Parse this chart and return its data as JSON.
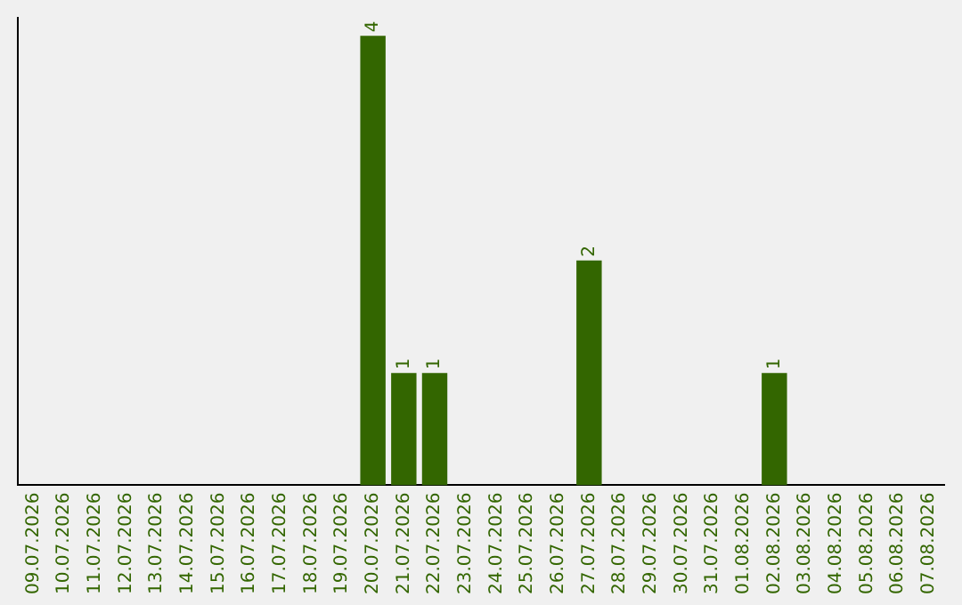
{
  "chart_data": {
    "type": "bar",
    "categories": [
      "09.07.2026",
      "10.07.2026",
      "11.07.2026",
      "12.07.2026",
      "13.07.2026",
      "14.07.2026",
      "15.07.2026",
      "16.07.2026",
      "17.07.2026",
      "18.07.2026",
      "19.07.2026",
      "20.07.2026",
      "21.07.2026",
      "22.07.2026",
      "23.07.2026",
      "24.07.2026",
      "25.07.2026",
      "26.07.2026",
      "27.07.2026",
      "28.07.2026",
      "29.07.2026",
      "30.07.2026",
      "31.07.2026",
      "01.08.2026",
      "02.08.2026",
      "03.08.2026",
      "04.08.2026",
      "05.08.2026",
      "06.08.2026",
      "07.08.2026"
    ],
    "values": [
      0,
      0,
      0,
      0,
      0,
      0,
      0,
      0,
      0,
      0,
      0,
      4,
      1,
      1,
      0,
      0,
      0,
      0,
      2,
      0,
      0,
      0,
      0,
      0,
      1,
      0,
      0,
      0,
      0,
      0
    ],
    "value_labels": [
      null,
      null,
      null,
      null,
      null,
      null,
      null,
      null,
      null,
      null,
      null,
      "4",
      "1",
      "1",
      null,
      null,
      null,
      null,
      "2",
      null,
      null,
      null,
      null,
      null,
      "1",
      null,
      null,
      null,
      null,
      null
    ],
    "color": "#336600",
    "grid": false,
    "legend": false
  }
}
